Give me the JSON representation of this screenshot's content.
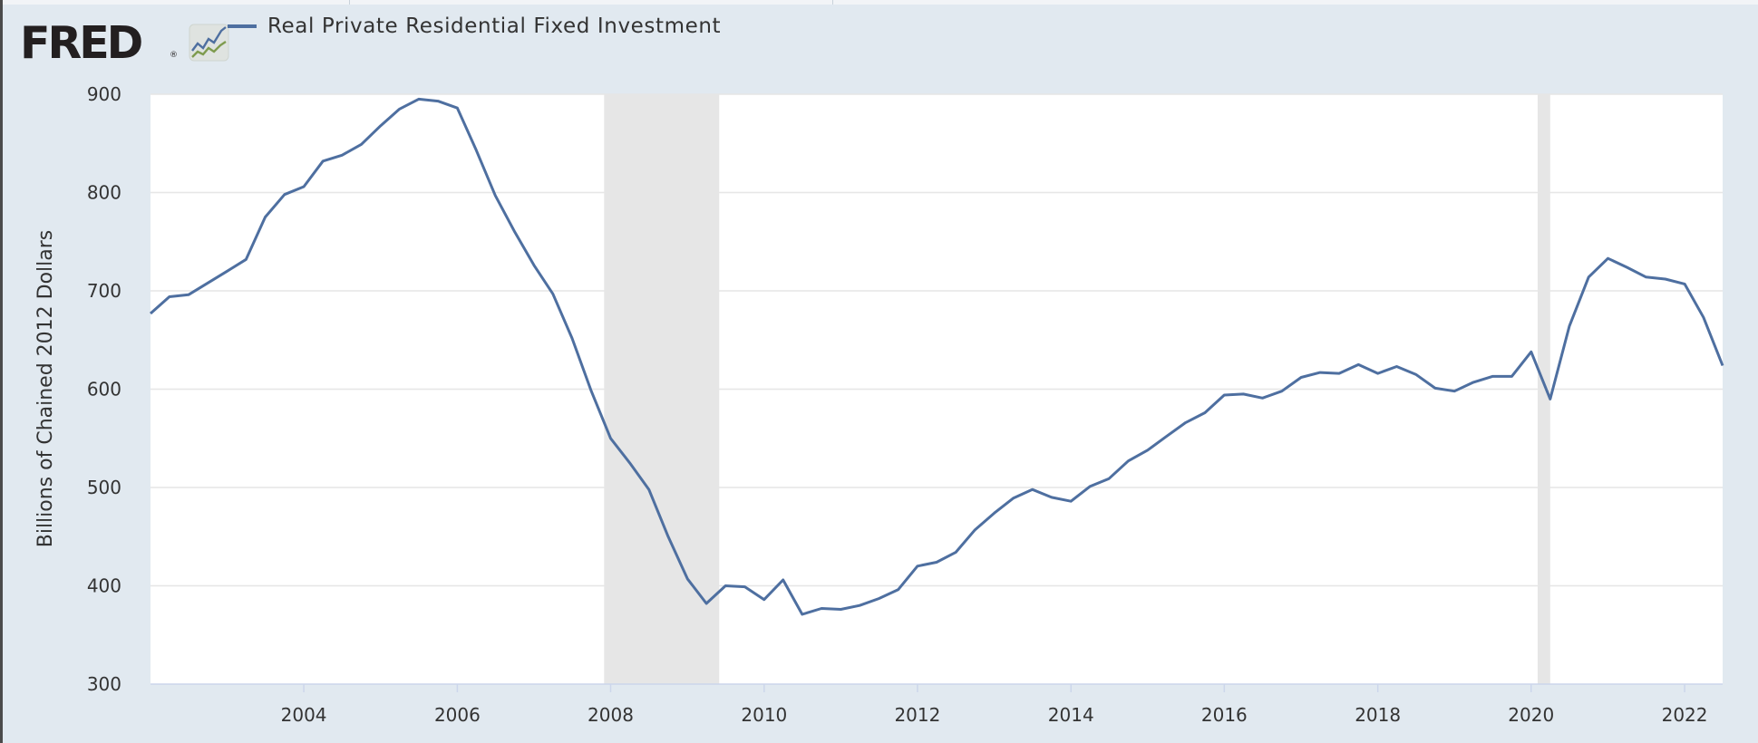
{
  "logo": {
    "text": "FRED",
    "registered": "®",
    "icon": "fred-graph-logo-icon"
  },
  "legend": {
    "series_name": "Real Private Residential Fixed Investment",
    "color": "#4e6fa0"
  },
  "colors": {
    "background": "#e1e9f0",
    "plot_background": "#ffffff",
    "grid": "#e6e6e6",
    "recession_shading": "#e6e6e6",
    "line": "#4e6fa0",
    "text": "#333333"
  },
  "chart_data": {
    "type": "line",
    "title": "",
    "xlabel": "",
    "ylabel": "Billions of Chained 2012 Dollars",
    "ylim": [
      300,
      900
    ],
    "xlim": [
      "2002-01-01",
      "2022-07-01"
    ],
    "yticks": [
      300,
      400,
      500,
      600,
      700,
      800,
      900
    ],
    "xticks": [
      "2004",
      "2006",
      "2008",
      "2010",
      "2012",
      "2014",
      "2016",
      "2018",
      "2020",
      "2022"
    ],
    "grid": true,
    "legend_position": "top",
    "recessions": [
      [
        "2007-12-01",
        "2009-06-01"
      ],
      [
        "2020-02-01",
        "2020-04-01"
      ]
    ],
    "series": [
      {
        "name": "Real Private Residential Fixed Investment",
        "x": [
          "2002-01-01",
          "2002-04-01",
          "2002-07-01",
          "2002-10-01",
          "2003-01-01",
          "2003-04-01",
          "2003-07-01",
          "2003-10-01",
          "2004-01-01",
          "2004-04-01",
          "2004-07-01",
          "2004-10-01",
          "2005-01-01",
          "2005-04-01",
          "2005-07-01",
          "2005-10-01",
          "2006-01-01",
          "2006-04-01",
          "2006-07-01",
          "2006-10-01",
          "2007-01-01",
          "2007-04-01",
          "2007-07-01",
          "2007-10-01",
          "2008-01-01",
          "2008-04-01",
          "2008-07-01",
          "2008-10-01",
          "2009-01-01",
          "2009-04-01",
          "2009-07-01",
          "2009-10-01",
          "2010-01-01",
          "2010-04-01",
          "2010-07-01",
          "2010-10-01",
          "2011-01-01",
          "2011-04-01",
          "2011-07-01",
          "2011-10-01",
          "2012-01-01",
          "2012-04-01",
          "2012-07-01",
          "2012-10-01",
          "2013-01-01",
          "2013-04-01",
          "2013-07-01",
          "2013-10-01",
          "2014-01-01",
          "2014-04-01",
          "2014-07-01",
          "2014-10-01",
          "2015-01-01",
          "2015-04-01",
          "2015-07-01",
          "2015-10-01",
          "2016-01-01",
          "2016-04-01",
          "2016-07-01",
          "2016-10-01",
          "2017-01-01",
          "2017-04-01",
          "2017-07-01",
          "2017-10-01",
          "2018-01-01",
          "2018-04-01",
          "2018-07-01",
          "2018-10-01",
          "2019-01-01",
          "2019-04-01",
          "2019-07-01",
          "2019-10-01",
          "2020-01-01",
          "2020-04-01",
          "2020-07-01",
          "2020-10-01",
          "2021-01-01",
          "2021-04-01",
          "2021-07-01",
          "2021-10-01",
          "2022-01-01",
          "2022-04-01",
          "2022-07-01"
        ],
        "values": [
          677,
          694,
          696,
          708,
          720,
          732,
          775,
          798,
          806,
          832,
          838,
          849,
          868,
          885,
          895,
          893,
          886,
          843,
          797,
          760,
          726,
          697,
          652,
          598,
          550,
          525,
          498,
          450,
          407,
          382,
          400,
          399,
          386,
          406,
          371,
          377,
          376,
          380,
          387,
          396,
          420,
          424,
          434,
          457,
          474,
          489,
          498,
          490,
          486,
          501,
          509,
          527,
          538,
          552,
          566,
          576,
          594,
          595,
          591,
          598,
          612,
          617,
          616,
          625,
          616,
          623,
          615,
          601,
          598,
          607,
          613,
          613,
          638,
          590,
          664,
          714,
          733,
          724,
          714,
          712,
          707,
          673,
          624
        ]
      }
    ]
  }
}
